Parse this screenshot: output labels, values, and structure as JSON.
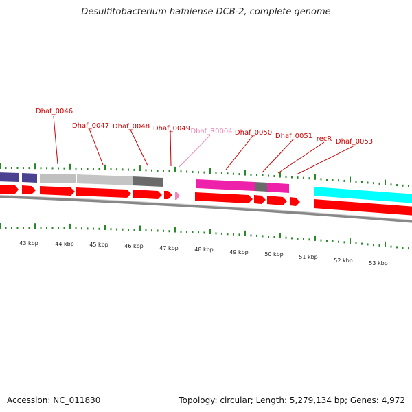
{
  "title": "Desulfitobacterium hafniense DCB-2, complete genome",
  "footer": {
    "accession": "Accession: NC_011830",
    "summary": "Topology: circular; Length: 5,279,134 bp; Genes: 4,972"
  },
  "colors": {
    "cds_red": "#ff0000",
    "label_red": "#cc0000",
    "rna_pink": "#ee88bb",
    "navy": "#4a4290",
    "light_gray": "#c0c0c0",
    "dark_gray": "#6a6a6a",
    "magenta": "#ee22aa",
    "cyan": "#00ffff",
    "tick_green": "#2a8a2a",
    "backbone_gray": "#888888"
  },
  "gene_labels": [
    {
      "text": "Dhaf_0046",
      "kind": "cds"
    },
    {
      "text": "Dhaf_0047",
      "kind": "cds"
    },
    {
      "text": "Dhaf_0048",
      "kind": "cds"
    },
    {
      "text": "Dhaf_0049",
      "kind": "cds"
    },
    {
      "text": "Dhaf_R0004",
      "kind": "rna"
    },
    {
      "text": "Dhaf_0050",
      "kind": "cds"
    },
    {
      "text": "Dhaf_0051",
      "kind": "cds"
    },
    {
      "text": "recR",
      "kind": "cds"
    },
    {
      "text": "Dhaf_0053",
      "kind": "cds"
    }
  ],
  "kbp_labels": [
    "43 kbp",
    "44 kbp",
    "45 kbp",
    "46 kbp",
    "47 kbp",
    "48 kbp",
    "49 kbp",
    "50 kbp",
    "51 kbp",
    "52 kbp",
    "53 kbp"
  ]
}
